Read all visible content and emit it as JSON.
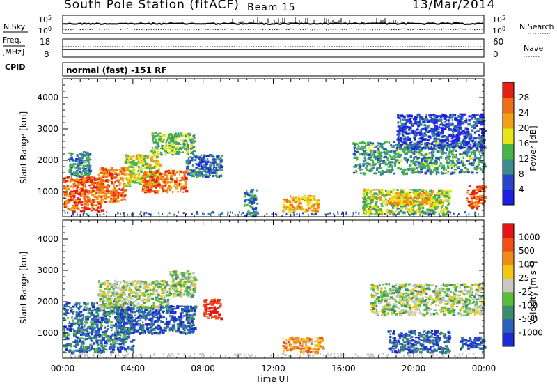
{
  "header": {
    "station": "South Pole Station (fitACF)",
    "beam": "Beam 15",
    "date": "13/Mar/2014"
  },
  "top_panels": {
    "nsky_label": "N.Sky",
    "nsky_ticks": [
      "10^5",
      "10^0"
    ],
    "nsearch_label": "N.Search",
    "nsearch_ticks": [
      "10^5",
      "10^0"
    ],
    "freq_label": "Freq.",
    "freq_unit": "[MHz]",
    "freq_ticks": [
      "18",
      "8"
    ],
    "nave_label": "Nave",
    "nave_ticks": [
      "60",
      "0"
    ],
    "cpid_label": "CPID",
    "cpid_text": "normal (fast) -151 RF"
  },
  "chart_data": [
    {
      "type": "heatmap",
      "name": "power-panel",
      "xlabel": "",
      "ylabel": "Slant Range [km]",
      "x_range_hours": [
        0,
        24
      ],
      "ylim": [
        200,
        4600
      ],
      "y_ticks": [
        "1000",
        "2000",
        "3000",
        "4000"
      ],
      "colorbar": {
        "label": "Power [dB]",
        "ticks": [
          "4",
          "8",
          "12",
          "16",
          "20",
          "24",
          "28"
        ],
        "colors": [
          "#1e1ee6",
          "#2844c8",
          "#3c8c8c",
          "#46b446",
          "#e6e614",
          "#f0a014",
          "#f06e14",
          "#e61e14"
        ]
      },
      "blobs": [
        {
          "t0": 0.0,
          "t1": 2.2,
          "r0": 400,
          "r1": 1500,
          "level": 0.85
        },
        {
          "t0": 0.3,
          "t1": 1.5,
          "r0": 1500,
          "r1": 2300,
          "level": 0.3
        },
        {
          "t0": 2.0,
          "t1": 3.5,
          "r0": 700,
          "r1": 1800,
          "level": 0.8
        },
        {
          "t0": 3.5,
          "t1": 5.5,
          "r0": 1200,
          "r1": 2200,
          "level": 0.55
        },
        {
          "t0": 4.5,
          "t1": 7.0,
          "r0": 1000,
          "r1": 1700,
          "level": 0.8
        },
        {
          "t0": 5.0,
          "t1": 7.5,
          "r0": 2200,
          "r1": 2900,
          "level": 0.45
        },
        {
          "t0": 7.0,
          "t1": 9.0,
          "r0": 1500,
          "r1": 2200,
          "level": 0.25
        },
        {
          "t0": 10.3,
          "t1": 11.0,
          "r0": 250,
          "r1": 1100,
          "level": 0.3
        },
        {
          "t0": 12.5,
          "t1": 14.5,
          "r0": 400,
          "r1": 900,
          "level": 0.7
        },
        {
          "t0": 16.5,
          "t1": 24.0,
          "r0": 1600,
          "r1": 2600,
          "level": 0.35
        },
        {
          "t0": 17.0,
          "t1": 22.0,
          "r0": 300,
          "r1": 1100,
          "level": 0.5
        },
        {
          "t0": 18.5,
          "t1": 21.0,
          "r0": 600,
          "r1": 1000,
          "level": 0.7
        },
        {
          "t0": 19.0,
          "t1": 24.0,
          "r0": 2400,
          "r1": 3500,
          "level": 0.15
        },
        {
          "t0": 23.0,
          "t1": 24.0,
          "r0": 500,
          "r1": 1200,
          "level": 0.85
        }
      ]
    },
    {
      "type": "heatmap",
      "name": "velocity-panel",
      "xlabel": "Time UT",
      "ylabel": "Slant Range [km]",
      "x_range_hours": [
        0,
        24
      ],
      "x_ticks": [
        "00:00",
        "04:00",
        "08:00",
        "12:00",
        "16:00",
        "20:00",
        "00:00"
      ],
      "ylim": [
        200,
        4600
      ],
      "y_ticks": [
        "1000",
        "2000",
        "3000",
        "4000"
      ],
      "colorbar": {
        "label": "Velocity [m s^-1]",
        "ticks": [
          "1000",
          "500",
          "100",
          "25",
          "-25",
          "-100",
          "-500",
          "-1000"
        ],
        "colors": [
          "#1e2ad2",
          "#2a5fbe",
          "#3c8c6e",
          "#5abe3c",
          "#c8c8c0",
          "#f0c814",
          "#f08c14",
          "#f05014",
          "#e61414"
        ]
      },
      "blobs": [
        {
          "t0": 0.0,
          "t1": 4.0,
          "r0": 400,
          "r1": 2000,
          "level": 0.8
        },
        {
          "t0": 3.0,
          "t1": 7.5,
          "r0": 1000,
          "r1": 1900,
          "level": 0.85
        },
        {
          "t0": 2.0,
          "t1": 6.0,
          "r0": 1800,
          "r1": 2700,
          "level": 0.55
        },
        {
          "t0": 6.0,
          "t1": 7.5,
          "r0": 2200,
          "r1": 3000,
          "level": 0.55
        },
        {
          "t0": 8.0,
          "t1": 9.0,
          "r0": 1500,
          "r1": 2100,
          "level": 0.05
        },
        {
          "t0": 12.5,
          "t1": 14.8,
          "r0": 400,
          "r1": 900,
          "level": 0.3
        },
        {
          "t0": 17.5,
          "t1": 24.0,
          "r0": 1600,
          "r1": 2600,
          "level": 0.55
        },
        {
          "t0": 18.5,
          "t1": 22.0,
          "r0": 400,
          "r1": 1100,
          "level": 0.85
        },
        {
          "t0": 22.5,
          "t1": 24.0,
          "r0": 500,
          "r1": 900,
          "level": 0.85
        }
      ]
    }
  ]
}
